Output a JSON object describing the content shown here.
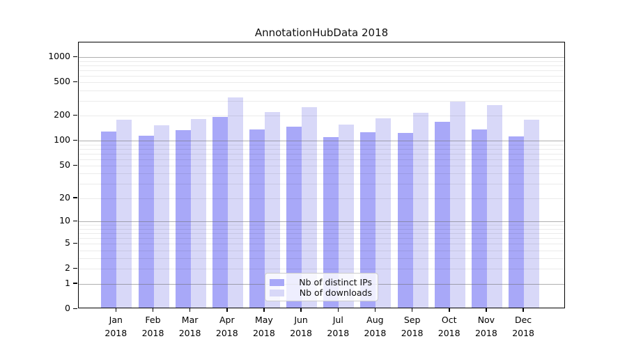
{
  "title": "AnnotationHubData 2018",
  "chart_data": {
    "type": "bar",
    "title": "AnnotationHubData 2018",
    "categories": [
      "Jan",
      "Feb",
      "Mar",
      "Apr",
      "May",
      "Jun",
      "Jul",
      "Aug",
      "Sep",
      "Oct",
      "Nov",
      "Dec"
    ],
    "x_year": "2018",
    "series": [
      {
        "name": "Nb of distinct IPs",
        "color": "#a8a8f8",
        "values": [
          125,
          110,
          129,
          186,
          131,
          143,
          106,
          121,
          120,
          163,
          131,
          109
        ]
      },
      {
        "name": "Nb of downloads",
        "color": "#d8d8f8",
        "values": [
          172,
          148,
          174,
          320,
          213,
          245,
          149,
          180,
          208,
          283,
          256,
          171
        ]
      }
    ],
    "xlabel": "",
    "ylabel": "",
    "y_ticks": [
      0,
      1,
      2,
      5,
      10,
      20,
      50,
      100,
      200,
      500,
      1000
    ],
    "scale": "log1p",
    "ylim": [
      0,
      1400
    ],
    "grid": true,
    "legend_position": "lower center",
    "colors": {
      "major_grid": "#b0b0b0",
      "minor_grid": "#ececec",
      "axis": "#000000",
      "background": "#ffffff"
    }
  }
}
